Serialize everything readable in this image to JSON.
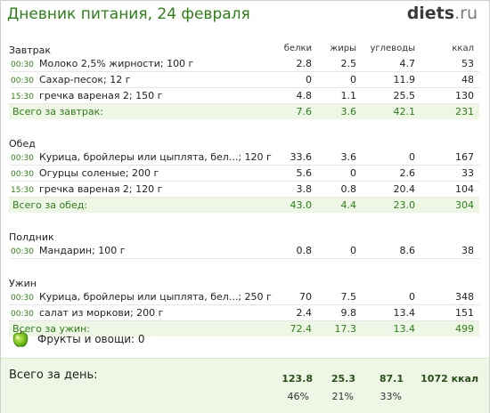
{
  "header": {
    "title": "Дневник питания, 24 февраля",
    "logo_main": "diets",
    "logo_tld": ".ru"
  },
  "columns": {
    "protein": "белки",
    "fat": "жиры",
    "carbs": "углеводы",
    "kcal": "ккал"
  },
  "meals": [
    {
      "name": "Завтрак",
      "items": [
        {
          "time": "00:30",
          "name": "Молоко 2,5% жирности; 100 г",
          "protein": "2.8",
          "fat": "2.5",
          "carbs": "4.7",
          "kcal": "53"
        },
        {
          "time": "00:30",
          "name": "Сахар-песок; 12 г",
          "protein": "0",
          "fat": "0",
          "carbs": "11.9",
          "kcal": "48"
        },
        {
          "time": "15:30",
          "name": "гречка вареная 2; 150 г",
          "protein": "4.8",
          "fat": "1.1",
          "carbs": "25.5",
          "kcal": "130"
        }
      ],
      "total": {
        "label": "Всего за завтрак:",
        "protein": "7.6",
        "fat": "3.6",
        "carbs": "42.1",
        "kcal": "231"
      }
    },
    {
      "name": "Обед",
      "items": [
        {
          "time": "00:30",
          "name": "Курица, бройлеры или цыплята, бел...; 120 г",
          "protein": "33.6",
          "fat": "3.6",
          "carbs": "0",
          "kcal": "167"
        },
        {
          "time": "00:30",
          "name": "Огурцы соленые; 200 г",
          "protein": "5.6",
          "fat": "0",
          "carbs": "2.6",
          "kcal": "33"
        },
        {
          "time": "15:30",
          "name": "гречка вареная 2; 120 г",
          "protein": "3.8",
          "fat": "0.8",
          "carbs": "20.4",
          "kcal": "104"
        }
      ],
      "total": {
        "label": "Всего за обед:",
        "protein": "43.0",
        "fat": "4.4",
        "carbs": "23.0",
        "kcal": "304"
      }
    },
    {
      "name": "Полдник",
      "items": [
        {
          "time": "00:30",
          "name": "Мандарин; 100 г",
          "protein": "0.8",
          "fat": "0",
          "carbs": "8.6",
          "kcal": "38"
        }
      ]
    },
    {
      "name": "Ужин",
      "items": [
        {
          "time": "00:30",
          "name": "Курица, бройлеры или цыплята, бел...; 250 г",
          "protein": "70",
          "fat": "7.5",
          "carbs": "0",
          "kcal": "348"
        },
        {
          "time": "00:30",
          "name": "салат из моркови; 200 г",
          "protein": "2.4",
          "fat": "9.8",
          "carbs": "13.4",
          "kcal": "151"
        }
      ],
      "total": {
        "label": "Всего за ужин:",
        "protein": "72.4",
        "fat": "17.3",
        "carbs": "13.4",
        "kcal": "499"
      }
    }
  ],
  "fruits": {
    "label": "Фрукты и овощи: 0",
    "icon": "apple-icon"
  },
  "day_total": {
    "label": "Всего за день:",
    "protein": "123.8",
    "fat": "25.3",
    "carbs": "87.1",
    "kcal": "1072 ккал",
    "protein_pct": "46%",
    "fat_pct": "21%",
    "carbs_pct": "33%"
  },
  "colors": {
    "accent": "#2f7d19",
    "total_bg": "#eef6e6"
  }
}
